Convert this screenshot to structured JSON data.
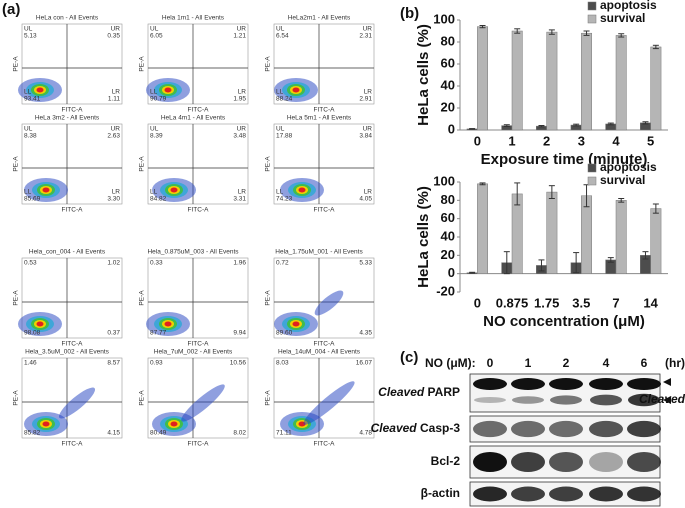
{
  "panel_labels": [
    "(a)",
    "(b)",
    "(c)"
  ],
  "panel_a": {
    "x_label": "FITC-A",
    "y_label": "PE-A",
    "plots": [
      {
        "title": "HeLa con - All Events",
        "labels": [
          "UL",
          "UR",
          "LL",
          "LR"
        ],
        "values": [
          "5.13",
          "0.35",
          "93.41",
          "1.11"
        ]
      },
      {
        "title": "Hela 1m1 - All Events",
        "labels": [
          "UL",
          "UR",
          "LL",
          "LR"
        ],
        "values": [
          "6.05",
          "1.21",
          "90.79",
          "1.95"
        ]
      },
      {
        "title": "HeLa2m1 - All Events",
        "labels": [
          "UL",
          "UR",
          "LL",
          "LR"
        ],
        "values": [
          "6.54",
          "2.31",
          "88.24",
          "2.91"
        ]
      },
      {
        "title": "HeLa 3m2 - All Events",
        "labels": [
          "UL",
          "UR",
          "LL",
          "LR"
        ],
        "values": [
          "8.38",
          "2.63",
          "85.69",
          "3.30"
        ]
      },
      {
        "title": "HeLa 4m1 - All Events",
        "labels": [
          "UL",
          "UR",
          "LL",
          "LR"
        ],
        "values": [
          "8.39",
          "3.48",
          "84.82",
          "3.31"
        ]
      },
      {
        "title": "HeLa 5m1 - All Events",
        "labels": [
          "UL",
          "UR",
          "LL",
          "LR"
        ],
        "values": [
          "17.88",
          "3.84",
          "74.23",
          "4.05"
        ]
      },
      {
        "title": "Hela_con_004 - All Events",
        "values": [
          "0.53",
          "1.02",
          "98.08",
          "0.37"
        ]
      },
      {
        "title": "Hela_0.875uM_003 - All Events",
        "values": [
          "0.33",
          "1.96",
          "87.77",
          "9.94"
        ]
      },
      {
        "title": "Hela_1.75uM_001 - All Events",
        "values": [
          "0.72",
          "5.33",
          "89.60",
          "4.35"
        ]
      },
      {
        "title": "Hela_3.5uM_002 - All Events",
        "values": [
          "1.46",
          "8.57",
          "85.82",
          "4.15"
        ]
      },
      {
        "title": "Hela_7uM_002 - All Events",
        "values": [
          "0.93",
          "10.56",
          "80.49",
          "8.02"
        ]
      },
      {
        "title": "Hela_14uM_004 - All Events",
        "values": [
          "8.03",
          "16.07",
          "71.11",
          "4.78"
        ]
      }
    ]
  },
  "chart_data": [
    {
      "type": "bar",
      "y_label": "HeLa cells (%)",
      "x_label": "Exposure time (minute)",
      "categories": [
        "0",
        "1",
        "2",
        "3",
        "4",
        "5"
      ],
      "series": [
        {
          "name": "apoptosis",
          "color": "#4d4d4d",
          "values": [
            1,
            4,
            3.5,
            4.5,
            5.5,
            6.5
          ],
          "errors": [
            0.3,
            0.8,
            0.6,
            0.8,
            0.8,
            1
          ]
        },
        {
          "name": "survival",
          "color": "#b5b5b5",
          "values": [
            94,
            90,
            89,
            88,
            86,
            75.5
          ],
          "errors": [
            1,
            2,
            2,
            2,
            1.5,
            1.5
          ]
        }
      ],
      "ylim": [
        0,
        100
      ],
      "yticks": [
        0,
        20,
        40,
        60,
        80,
        100
      ],
      "legend": "upper right"
    },
    {
      "type": "bar",
      "y_label": "HeLa cells (%)",
      "x_label": "NO concentration (μM)",
      "categories": [
        "0",
        "0.875",
        "1.75",
        "3.5",
        "7",
        "14"
      ],
      "series": [
        {
          "name": "apoptosis",
          "color": "#4d4d4d",
          "values": [
            1,
            12,
            9,
            12,
            15,
            20
          ],
          "errors": [
            0.5,
            12,
            6,
            11,
            2.5,
            4
          ]
        },
        {
          "name": "survival",
          "color": "#b5b5b5",
          "values": [
            98,
            87,
            89,
            85,
            80,
            71
          ],
          "errors": [
            1,
            12,
            7,
            12,
            2,
            5
          ]
        }
      ],
      "ylim": [
        -20,
        100
      ],
      "yticks": [
        -20,
        0,
        20,
        40,
        60,
        80,
        100
      ],
      "legend": "upper right"
    }
  ],
  "panel_c": {
    "treatment_label": "NO (μM):",
    "lanes": [
      "0",
      "1",
      "2",
      "4",
      "6"
    ],
    "unit": "(hr)",
    "rows": [
      {
        "emphasis": "Cleaved",
        "name": "PARP"
      },
      {
        "emphasis": "Cleaved",
        "name": "Casp-3"
      },
      {
        "name": "Bcl-2"
      },
      {
        "name": "β-actin"
      }
    ],
    "arrow_label": "Cleaved"
  }
}
